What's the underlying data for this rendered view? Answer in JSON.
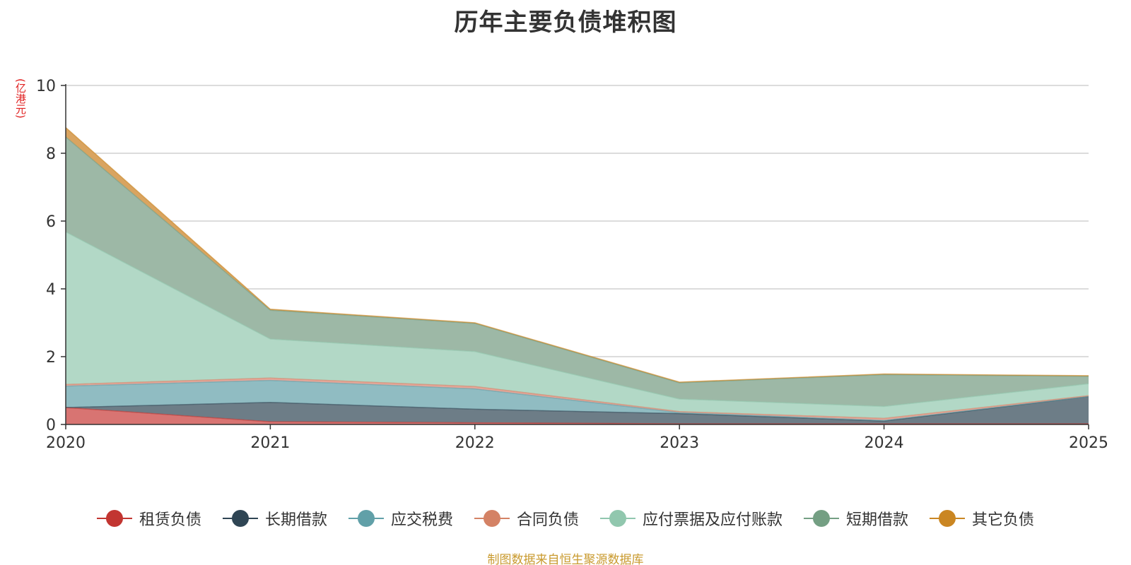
{
  "chart_data": {
    "type": "area",
    "stacked": true,
    "title": "历年主要负债堆积图",
    "ylabel": "(亿港元)",
    "xlabel": "",
    "x": [
      "2020",
      "2021",
      "2022",
      "2023",
      "2024",
      "2025"
    ],
    "ylim": [
      0,
      10
    ],
    "yticks": [
      "0",
      "2",
      "4",
      "6",
      "8",
      "10"
    ],
    "grid": true,
    "legend_position": "bottom",
    "series": [
      {
        "name": "租赁负债",
        "color": "#c23531",
        "fill": "#d87472",
        "values": [
          0.5,
          0.08,
          0.05,
          0.02,
          0.02,
          0.02
        ]
      },
      {
        "name": "长期借款",
        "color": "#2f4554",
        "fill": "#6d7d87",
        "values": [
          0.0,
          0.57,
          0.4,
          0.3,
          0.08,
          0.8
        ]
      },
      {
        "name": "应交税费",
        "color": "#61a0a8",
        "fill": "#90bcc2",
        "values": [
          0.63,
          0.65,
          0.6,
          0.03,
          0.02,
          0.0
        ]
      },
      {
        "name": "合同负债",
        "color": "#d48265",
        "fill": "#e5a89b",
        "values": [
          0.05,
          0.07,
          0.07,
          0.03,
          0.06,
          0.03
        ]
      },
      {
        "name": "应付票据及应付账款",
        "color": "#91c7ae",
        "fill": "#b2d8c6",
        "values": [
          4.5,
          1.15,
          1.03,
          0.37,
          0.35,
          0.35
        ]
      },
      {
        "name": "短期借款",
        "color": "#749f83",
        "fill": "#9db8a6",
        "values": [
          2.8,
          0.85,
          0.83,
          0.48,
          0.94,
          0.22
        ]
      },
      {
        "name": "其它负债",
        "color": "#ca8622",
        "fill": "#d9a460",
        "values": [
          0.28,
          0.03,
          0.02,
          0.02,
          0.02,
          0.02
        ]
      }
    ]
  },
  "source_note": "制图数据来自恒生聚源数据库"
}
